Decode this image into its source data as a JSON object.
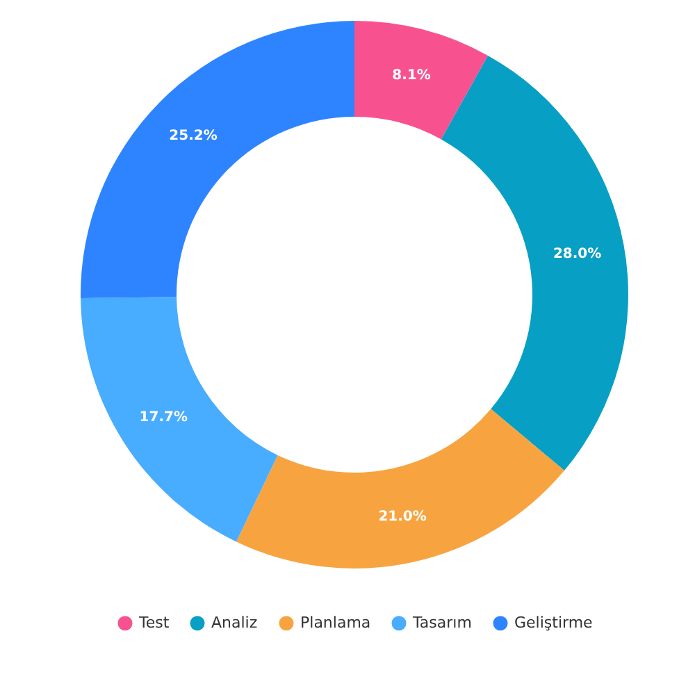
{
  "chart_data": {
    "type": "donut",
    "categories": [
      "Test",
      "Analiz",
      "Planlama",
      "Tasarım",
      "Geliştirme"
    ],
    "values": [
      8.1,
      28.0,
      21.0,
      17.7,
      25.2
    ],
    "value_labels": [
      "8.1%",
      "28.0%",
      "21.0%",
      "17.7%",
      "25.2%"
    ],
    "colors": [
      "#f7528f",
      "#089fc4",
      "#f7a440",
      "#48acff",
      "#2e84ff"
    ],
    "legend": "bottom"
  }
}
